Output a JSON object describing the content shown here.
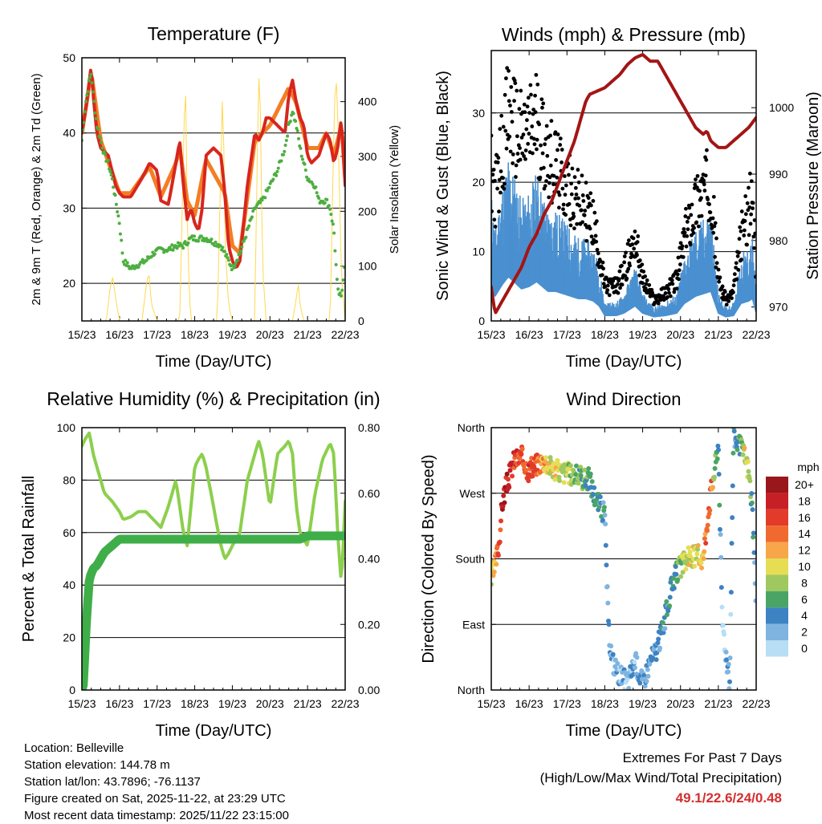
{
  "colors": {
    "temp_2m": "#d7261e",
    "temp_9m": "#f47d23",
    "dewpoint": "#4daf3f",
    "solar": "#ffd84d",
    "gust": "#000000",
    "wind": "#4a90d0",
    "pressure": "#a31515",
    "rh": "#8ccf4d",
    "precip": "#3fae49",
    "extremes_text": "#d42f2f"
  },
  "chart_data": [
    {
      "type": "line",
      "id": "temperature",
      "title": "Temperature (F)",
      "xlabel": "Time (Day/UTC)",
      "ylabel": "2m & 9m T (Red, Orange) & 2m Td (Green)",
      "y2label": "Solar Insolation (Yellow)",
      "x_ticks": [
        "15/23",
        "16/23",
        "17/23",
        "18/23",
        "19/23",
        "20/23",
        "21/23",
        "22/23"
      ],
      "xlim": [
        0,
        7
      ],
      "ylim": [
        15,
        50
      ],
      "y_ticks": [
        "20",
        "30",
        "40",
        "50"
      ],
      "y2lim": [
        0,
        480
      ],
      "y2_ticks": [
        "0",
        "100",
        "200",
        "300",
        "400"
      ],
      "grid_y": [
        20,
        30,
        40,
        50
      ],
      "series": [
        {
          "name": "2m T",
          "color_key": "temp_2m",
          "x": [
            0,
            0.1,
            0.2,
            0.25,
            0.3,
            0.4,
            0.5,
            0.7,
            0.9,
            1.0,
            1.1,
            1.3,
            1.6,
            1.8,
            2.0,
            2.1,
            2.3,
            2.5,
            2.6,
            2.7,
            2.8,
            2.9,
            3.0,
            3.1,
            3.2,
            3.3,
            3.5,
            3.7,
            3.8,
            3.9,
            4.0,
            4.1,
            4.2,
            4.4,
            4.6,
            4.7,
            4.8,
            4.9,
            5.0,
            5.2,
            5.4,
            5.5,
            5.6,
            5.7,
            5.8,
            5.9,
            6.0,
            6.1,
            6.3,
            6.5,
            6.6,
            6.7,
            6.8,
            6.9,
            7.0
          ],
          "values": [
            40,
            43,
            47,
            49,
            45,
            40,
            38,
            37,
            33,
            32,
            31.5,
            31.5,
            34,
            36,
            35,
            31,
            30.5,
            36,
            39,
            33,
            28.5,
            30,
            28,
            27,
            30,
            37,
            38,
            37,
            32,
            25,
            23,
            22,
            23,
            33,
            40,
            39,
            40,
            42,
            42,
            41,
            40,
            45,
            47,
            44,
            42,
            41,
            37,
            36,
            37,
            40,
            39,
            36,
            38,
            42,
            33
          ]
        },
        {
          "name": "9m T",
          "color_key": "temp_9m",
          "x": [
            0,
            0.25,
            0.5,
            1.0,
            1.3,
            1.8,
            2.1,
            2.5,
            2.6,
            2.8,
            3.0,
            3.3,
            3.8,
            4.0,
            4.2,
            4.6,
            5.0,
            5.5,
            5.7,
            6.0,
            6.3,
            6.5,
            6.7,
            6.9,
            7.0
          ],
          "values": [
            40,
            48,
            39,
            32,
            32,
            35.5,
            31.5,
            36,
            38,
            31,
            29,
            36.5,
            32,
            25,
            24,
            39,
            41,
            46,
            44,
            38,
            38,
            40,
            37,
            41,
            34
          ]
        },
        {
          "name": "2m Td",
          "color_key": "dewpoint",
          "x": [
            0,
            0.1,
            0.2,
            0.25,
            0.3,
            0.4,
            0.5,
            0.6,
            0.7,
            0.8,
            0.9,
            1.0,
            1.1,
            1.3,
            1.5,
            1.7,
            1.9,
            2.1,
            2.3,
            2.5,
            2.7,
            2.9,
            3.1,
            3.3,
            3.5,
            3.7,
            3.8,
            3.9,
            4.0,
            4.2,
            4.4,
            4.6,
            4.8,
            5.0,
            5.2,
            5.4,
            5.5,
            5.6,
            5.7,
            5.8,
            6.0,
            6.2,
            6.3,
            6.5,
            6.6,
            6.7,
            6.8,
            6.9,
            7.0
          ],
          "values": [
            39,
            44,
            47,
            48,
            45,
            41,
            39,
            37,
            36,
            34,
            31,
            28,
            23,
            22,
            22.5,
            23,
            24,
            24.5,
            24.5,
            25,
            25,
            26,
            26,
            26,
            25.5,
            25,
            24,
            23,
            22,
            24,
            27,
            30,
            31,
            33,
            35,
            38,
            41,
            43,
            41,
            38,
            34,
            33,
            31,
            31,
            30,
            27,
            19,
            18,
            24
          ]
        },
        {
          "name": "Solar Insolation",
          "color_key": "solar",
          "axis": "y2",
          "x": [
            0,
            0.65,
            0.75,
            0.82,
            0.9,
            1.0,
            1.6,
            1.7,
            1.78,
            1.85,
            2.0,
            2.6,
            2.7,
            2.75,
            2.8,
            2.85,
            2.9,
            3.6,
            3.7,
            3.75,
            3.8,
            3.9,
            4.0,
            4.6,
            4.65,
            4.7,
            4.75,
            4.8,
            4.9,
            5.6,
            5.7,
            5.75,
            5.8,
            5.9,
            6.0,
            6.6,
            6.7,
            6.75,
            6.8,
            6.9,
            7.0
          ],
          "values": [
            0,
            0,
            60,
            80,
            40,
            0,
            0,
            60,
            90,
            30,
            0,
            0,
            300,
            470,
            200,
            60,
            0,
            0,
            300,
            450,
            150,
            30,
            0,
            0,
            250,
            450,
            380,
            100,
            0,
            0,
            40,
            70,
            30,
            0,
            0,
            0,
            350,
            460,
            380,
            80,
            0
          ]
        }
      ]
    },
    {
      "type": "scatter",
      "id": "winds",
      "title": "Winds (mph) & Pressure (mb)",
      "xlabel": "Time (Day/UTC)",
      "ylabel": "Sonic Wind & Gust (Blue, Black)",
      "y2label": "Station Pressure (Maroon)",
      "x_ticks": [
        "15/23",
        "16/23",
        "17/23",
        "18/23",
        "19/23",
        "20/23",
        "21/23",
        "22/23"
      ],
      "xlim": [
        0,
        7
      ],
      "ylim": [
        0,
        39
      ],
      "y_ticks": [
        "0",
        "10",
        "20",
        "30"
      ],
      "y2lim": [
        967.9,
        1008.6
      ],
      "y2_ticks": [
        "970",
        "980",
        "990",
        "1000"
      ],
      "grid_y": [
        10,
        20,
        30
      ],
      "series": [
        {
          "name": "Gust",
          "color_key": "gust",
          "x": [
            0,
            0.1,
            0.3,
            0.45,
            0.6,
            0.8,
            1.0,
            1.2,
            1.35,
            1.5,
            1.7,
            1.9,
            2.1,
            2.3,
            2.5,
            2.7,
            2.85,
            3.0,
            3.3,
            3.5,
            3.8,
            4.0,
            4.3,
            4.6,
            4.9,
            5.1,
            5.4,
            5.6,
            5.8,
            6.0,
            6.2,
            6.4,
            6.6,
            6.8,
            6.9,
            7.0
          ],
          "values": [
            22,
            18,
            25,
            30,
            28,
            26,
            27,
            29,
            26,
            24,
            22,
            20,
            19,
            17,
            16,
            14,
            10,
            5,
            5,
            7,
            12,
            6,
            3,
            4,
            6,
            12,
            17,
            19,
            20,
            6,
            3,
            4,
            12,
            16,
            18,
            7
          ]
        },
        {
          "name": "Wind",
          "color_key": "wind",
          "x": [
            0,
            0.1,
            0.3,
            0.45,
            0.6,
            0.8,
            1.0,
            1.2,
            1.35,
            1.5,
            1.7,
            1.9,
            2.1,
            2.3,
            2.5,
            2.7,
            2.85,
            3.0,
            3.3,
            3.5,
            3.8,
            4.0,
            4.3,
            4.6,
            4.9,
            5.1,
            5.4,
            5.6,
            5.8,
            6.0,
            6.2,
            6.4,
            6.6,
            6.8,
            6.9,
            7.0
          ],
          "values": [
            14,
            10,
            15,
            18,
            16,
            13,
            14,
            16,
            14,
            12,
            12,
            11,
            10,
            9,
            9,
            8,
            6,
            2,
            2,
            3,
            6,
            3,
            1.5,
            2,
            3,
            7,
            10,
            11,
            12,
            3,
            1.5,
            2,
            7,
            8,
            9,
            3
          ]
        },
        {
          "name": "Station Pressure",
          "color_key": "pressure",
          "axis": "y2",
          "x": [
            0,
            0.1,
            0.3,
            0.6,
            0.8,
            1.0,
            1.2,
            1.4,
            1.6,
            1.8,
            2.0,
            2.2,
            2.4,
            2.5,
            2.6,
            2.8,
            3.0,
            3.2,
            3.4,
            3.6,
            3.8,
            4.0,
            4.2,
            4.4,
            4.6,
            4.8,
            5.0,
            5.2,
            5.4,
            5.6,
            5.7,
            5.8,
            6.0,
            6.2,
            6.4,
            6.6,
            6.8,
            7.0
          ],
          "values": [
            973,
            969,
            971,
            974,
            976,
            979,
            981,
            984,
            986,
            989,
            992,
            995,
            999,
            1001,
            1002,
            1002.5,
            1003,
            1004,
            1005,
            1006.5,
            1007.5,
            1008,
            1007,
            1007,
            1005,
            1003,
            1001,
            999,
            997,
            996,
            996.5,
            995,
            994,
            994,
            995,
            996,
            997,
            998.5
          ]
        }
      ]
    },
    {
      "type": "line",
      "id": "humidity",
      "title": "Relative Humidity (%) & Precipitation (in)",
      "xlabel": "Time (Day/UTC)",
      "ylabel": "Percent & Total Rainfall",
      "x_ticks": [
        "15/23",
        "16/23",
        "17/23",
        "18/23",
        "19/23",
        "20/23",
        "21/23",
        "22/23"
      ],
      "xlim": [
        0,
        7
      ],
      "ylim": [
        0,
        100
      ],
      "y_ticks": [
        "0",
        "20",
        "40",
        "60",
        "80",
        "100"
      ],
      "y2lim": [
        0,
        0.8
      ],
      "y2_ticks": [
        "0.00",
        "0.20",
        "0.40",
        "0.60",
        "0.80"
      ],
      "grid_y": [
        20,
        40,
        60,
        80
      ],
      "series": [
        {
          "name": "Relative Humidity",
          "color_key": "rh",
          "x": [
            0,
            0.1,
            0.2,
            0.3,
            0.4,
            0.5,
            0.6,
            0.8,
            1.0,
            1.1,
            1.3,
            1.5,
            1.7,
            1.9,
            2.1,
            2.3,
            2.5,
            2.6,
            2.7,
            2.8,
            2.9,
            3.0,
            3.1,
            3.2,
            3.3,
            3.5,
            3.6,
            3.7,
            3.8,
            3.9,
            4.0,
            4.2,
            4.4,
            4.6,
            4.7,
            4.8,
            4.9,
            5.0,
            5.2,
            5.4,
            5.5,
            5.6,
            5.7,
            5.8,
            6.0,
            6.2,
            6.4,
            6.6,
            6.7,
            6.8,
            6.9,
            7.0
          ],
          "values": [
            93,
            96,
            98,
            90,
            85,
            80,
            75,
            72,
            68,
            65,
            66,
            68,
            68,
            65,
            62,
            70,
            80,
            70,
            60,
            55,
            70,
            85,
            88,
            90,
            85,
            70,
            62,
            55,
            50,
            52,
            55,
            60,
            80,
            90,
            95,
            90,
            80,
            70,
            90,
            93,
            95,
            90,
            70,
            60,
            55,
            75,
            88,
            94,
            90,
            60,
            40,
            72
          ]
        },
        {
          "name": "Total Rainfall",
          "color_key": "precip",
          "axis": "y2",
          "x": [
            0,
            0.05,
            0.1,
            0.15,
            0.2,
            0.3,
            0.4,
            0.5,
            0.6,
            0.7,
            0.8,
            0.9,
            1.0,
            1.5,
            2.0,
            3.0,
            4.0,
            5.0,
            5.8,
            6.0,
            7.0
          ],
          "values": [
            0,
            0.02,
            0.17,
            0.26,
            0.34,
            0.37,
            0.38,
            0.4,
            0.42,
            0.43,
            0.44,
            0.45,
            0.46,
            0.46,
            0.46,
            0.46,
            0.46,
            0.46,
            0.46,
            0.47,
            0.47
          ]
        }
      ]
    },
    {
      "type": "scatter",
      "id": "wind_direction",
      "title": "Wind Direction",
      "xlabel": "Time (Day/UTC)",
      "ylabel": "Direction (Colored By Speed)",
      "x_ticks": [
        "15/23",
        "16/23",
        "17/23",
        "18/23",
        "19/23",
        "20/23",
        "21/23",
        "22/23"
      ],
      "xlim": [
        0,
        7
      ],
      "ylim": [
        0,
        360
      ],
      "y_ticks": [
        "North",
        "East",
        "South",
        "West",
        "North"
      ],
      "grid_y": [
        90,
        180,
        270
      ],
      "legend_title": "mph",
      "legend_labels": [
        "20+",
        "18",
        "16",
        "14",
        "12",
        "10",
        "8",
        "6",
        "4",
        "2",
        "0"
      ],
      "legend_colors": [
        "#99161b",
        "#c61f25",
        "#e33b2a",
        "#f06a30",
        "#f7a64a",
        "#e6dd54",
        "#9fc85f",
        "#4aa564",
        "#3d82c2",
        "#7fb4e0",
        "#b7def5"
      ],
      "series": [
        {
          "name": "Direction",
          "x": [
            0,
            0.1,
            0.2,
            0.3,
            0.4,
            0.6,
            0.8,
            1.0,
            1.2,
            1.4,
            1.6,
            1.8,
            2.0,
            2.2,
            2.4,
            2.6,
            2.7,
            2.8,
            2.9,
            3.0,
            3.1,
            3.2,
            3.4,
            3.6,
            3.8,
            4.0,
            4.2,
            4.4,
            4.6,
            4.8,
            5.0,
            5.2,
            5.4,
            5.6,
            5.7,
            5.8,
            5.9,
            6.0,
            6.1,
            6.2,
            6.3,
            6.4,
            6.5,
            6.6,
            6.7,
            6.8,
            6.9,
            7.0
          ],
          "values": [
            150,
            170,
            200,
            260,
            280,
            315,
            320,
            300,
            310,
            315,
            305,
            300,
            298,
            295,
            290,
            290,
            270,
            260,
            250,
            240,
            80,
            40,
            20,
            10,
            40,
            10,
            40,
            60,
            100,
            150,
            170,
            180,
            185,
            180,
            230,
            270,
            300,
            340,
            100,
            50,
            10,
            350,
            340,
            330,
            320,
            300,
            250,
            100
          ],
          "speed": [
            10,
            12,
            16,
            18,
            18,
            16,
            16,
            16,
            14,
            12,
            10,
            10,
            8,
            8,
            6,
            6,
            5,
            4,
            4,
            3,
            2,
            2,
            2,
            2,
            3,
            3,
            3,
            3,
            4,
            5,
            8,
            10,
            9,
            12,
            14,
            16,
            8,
            5,
            2,
            1,
            2,
            4,
            5,
            6,
            10,
            8,
            5,
            2
          ]
        }
      ]
    }
  ],
  "info": {
    "location": "Location: Belleville",
    "elevation": "Station elevation: 144.78 m",
    "latlon": "Station lat/lon: 43.7896; -76.1137",
    "created": "Figure created on Sat, 2025-11-22, at 23:29 UTC",
    "latest": "Most recent data timestamp: 2025/11/22 23:15:00"
  },
  "extremes": {
    "title": "Extremes For Past 7 Days",
    "subtitle": "(High/Low/Max Wind/Total Precipitation)",
    "values": "49.1/22.6/24/0.48"
  }
}
